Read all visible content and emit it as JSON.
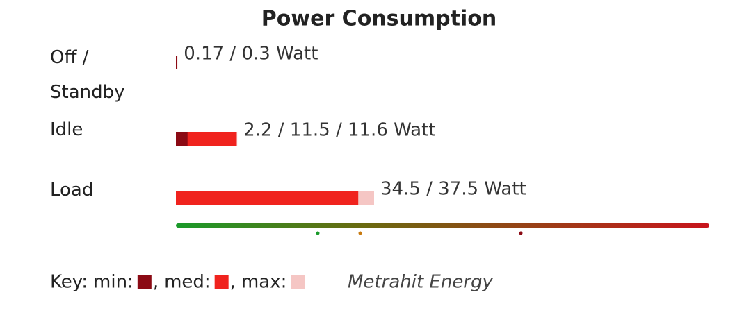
{
  "chart_data": {
    "type": "bar",
    "orientation": "horizontal",
    "title": "Power Consumption",
    "categories": [
      "Off / Standby",
      "Idle",
      "Load"
    ],
    "series": [
      {
        "name": "min:",
        "color": "#8b0a14",
        "values": [
          0.17,
          2.2,
          null
        ]
      },
      {
        "name": "med:",
        "color": "#f0231e",
        "values": [
          null,
          11.5,
          34.5
        ]
      },
      {
        "name": "max:",
        "color": "#f5c6c4",
        "values": [
          0.3,
          11.6,
          37.5
        ]
      }
    ],
    "value_labels": [
      "0.17 / 0.3 Watt",
      "2.2 / 11.5 / 11.6 Watt",
      "34.5 / 37.5 Watt"
    ],
    "xlim": [
      0,
      100
    ],
    "key_label": "Key:",
    "key_separator": ",",
    "source": "Metrahit Energy"
  }
}
